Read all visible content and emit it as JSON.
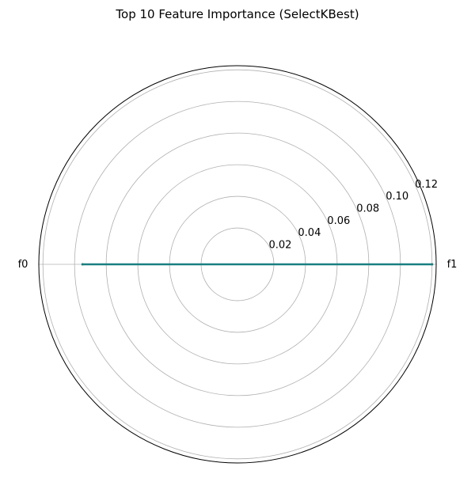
{
  "chart_data": {
    "type": "radar",
    "title": "Top 10 Feature Importance (SelectKBest)",
    "categories": [
      "f1",
      "f0"
    ],
    "category_angles_deg": [
      0,
      180
    ],
    "series": [
      {
        "values": [
          0.12,
          0.095
        ],
        "color": "#1a7f80"
      }
    ],
    "r_ticks": [
      0.02,
      0.04,
      0.06,
      0.08,
      0.1,
      0.12
    ],
    "r_tick_labels": [
      "0.02",
      "0.04",
      "0.06",
      "0.08",
      "0.10",
      "0.12"
    ],
    "r_range": [
      -0.003,
      0.1226
    ],
    "grid": true,
    "grid_color": "#b0b0b0",
    "line_color": "#1a7f80"
  }
}
